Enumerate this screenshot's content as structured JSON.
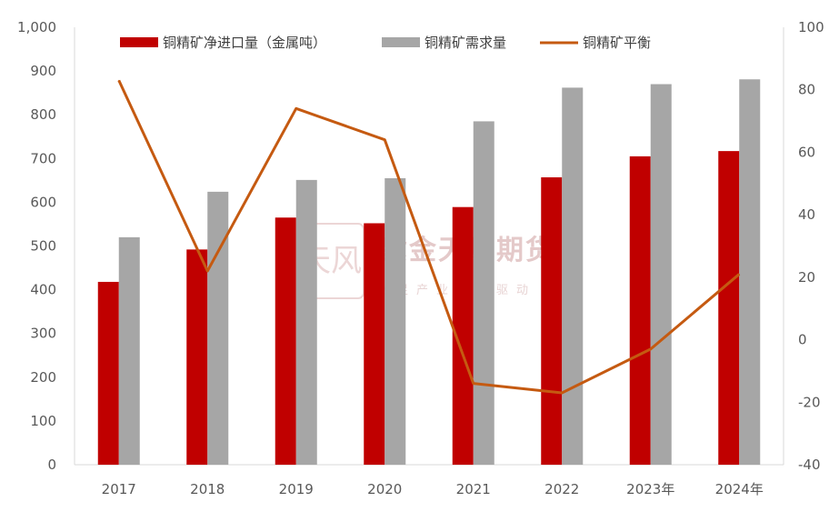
{
  "watermark": {
    "name": "紫金天风期货",
    "slogan": "立足产业研究驱动",
    "seal": "天风"
  },
  "chart_data": {
    "type": "bar",
    "categories": [
      "2017",
      "2018",
      "2019",
      "2020",
      "2021",
      "2022",
      "2023年",
      "2024年"
    ],
    "series": [
      {
        "name": "铜精矿净进口量（金属吨）",
        "type": "bar",
        "axis": "left",
        "color": "#c00000",
        "values": [
          418,
          492,
          565,
          552,
          589,
          657,
          705,
          717
        ]
      },
      {
        "name": "铜精矿需求量",
        "type": "bar",
        "axis": "left",
        "color": "#a6a6a6",
        "values": [
          520,
          624,
          651,
          655,
          785,
          862,
          870,
          881
        ]
      },
      {
        "name": "铜精矿平衡",
        "type": "line",
        "axis": "right",
        "color": "#c55a11",
        "values": [
          83,
          22,
          74,
          64,
          -14,
          -17,
          -3,
          21
        ]
      }
    ],
    "y_left": {
      "min": 0,
      "max": 1000,
      "ticks": [
        "0",
        "100",
        "200",
        "300",
        "400",
        "500",
        "600",
        "700",
        "800",
        "900",
        "1,000"
      ]
    },
    "y_right": {
      "min": -40,
      "max": 100,
      "ticks": [
        "-40",
        "-20",
        "0",
        "20",
        "40",
        "60",
        "80",
        "100"
      ]
    },
    "grid": false,
    "legend_position": "top"
  }
}
